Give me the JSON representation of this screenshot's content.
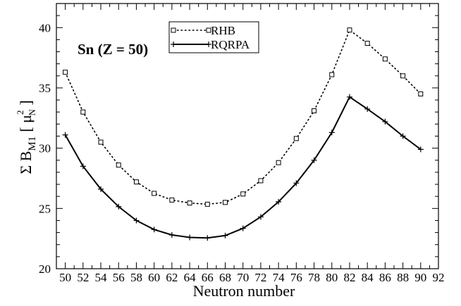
{
  "chart_data": {
    "type": "line",
    "title": "",
    "xlabel": "Neutron number",
    "ylabel": {
      "prefix": "Σ B",
      "subscript": "M1",
      "bracket_open": "[ μ",
      "unit_sub": "N",
      "unit_sup": "2",
      "bracket_close": " ]"
    },
    "annotation": "Sn (Z = 50)",
    "xlim": [
      49,
      92
    ],
    "ylim": [
      20,
      42
    ],
    "xticks": [
      50,
      52,
      54,
      56,
      58,
      60,
      62,
      64,
      66,
      68,
      70,
      72,
      74,
      76,
      78,
      80,
      82,
      84,
      86,
      88,
      90,
      92
    ],
    "yticks": [
      20,
      25,
      30,
      35,
      40
    ],
    "legend_position": "top-center",
    "grid": false,
    "series": [
      {
        "name": "RHB",
        "style": "dotted",
        "marker": "square",
        "color": "#000000",
        "x": [
          50,
          52,
          54,
          56,
          58,
          60,
          62,
          64,
          66,
          68,
          70,
          72,
          74,
          76,
          78,
          80,
          82,
          84,
          86,
          88,
          90
        ],
        "values": [
          36.3,
          33.0,
          30.5,
          28.6,
          27.2,
          26.25,
          25.7,
          25.45,
          25.35,
          25.5,
          26.2,
          27.3,
          28.8,
          30.8,
          33.1,
          36.1,
          39.8,
          38.7,
          37.4,
          36.0,
          34.5
        ]
      },
      {
        "name": "RQRPA",
        "style": "solid",
        "marker": "plus",
        "color": "#000000",
        "x": [
          50,
          52,
          54,
          56,
          58,
          60,
          62,
          64,
          66,
          68,
          70,
          72,
          74,
          76,
          78,
          80,
          82,
          84,
          86,
          88,
          90
        ],
        "values": [
          31.1,
          28.5,
          26.6,
          25.15,
          24.0,
          23.25,
          22.8,
          22.6,
          22.55,
          22.75,
          23.35,
          24.3,
          25.55,
          27.1,
          29.0,
          31.3,
          34.25,
          33.25,
          32.2,
          31.0,
          29.9
        ]
      }
    ]
  }
}
